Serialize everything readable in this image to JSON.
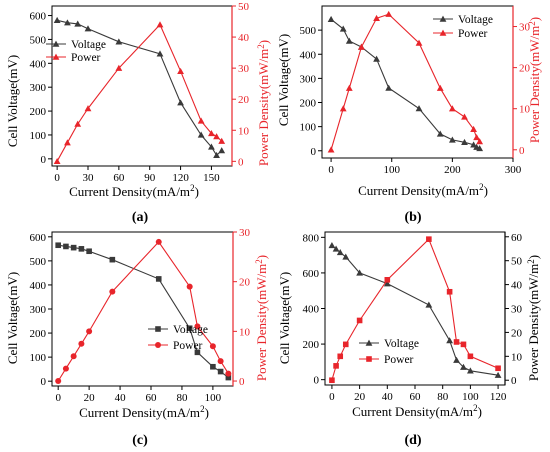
{
  "figure": {
    "panels": [
      {
        "label": "(a)",
        "xlabel": "Current Density(mA/m",
        "xlabel_sup": "2",
        "xlabel_end": ")",
        "ylabel_left": "Cell Voltage(mV)",
        "ylabel_right": "Power  Density(mW/m",
        "ylabel_right_sup": "2",
        "ylabel_right_end": ")",
        "legend_voltage": "Voltage",
        "legend_power": "Power"
      },
      {
        "label": "(b)",
        "xlabel": "Current Density(mA/m",
        "xlabel_sup": "2",
        "xlabel_end": ")",
        "ylabel_left": "Cell Voltage(mV)",
        "ylabel_right": "Power  Density(mW/m",
        "ylabel_right_sup": "2",
        "ylabel_right_end": ")",
        "legend_voltage": "Voltage",
        "legend_power": "Power"
      },
      {
        "label": "(c)",
        "xlabel": "Current Density(mA/m",
        "xlabel_sup": "2",
        "xlabel_end": ")",
        "ylabel_left": "Cell Voltage(mV)",
        "ylabel_right": "Power  Density(mW/m",
        "ylabel_right_sup": "2",
        "ylabel_right_end": ")",
        "legend_voltage": "Voltage",
        "legend_power": "Power"
      },
      {
        "label": "(d)",
        "xlabel": "Current Density(mA/m",
        "xlabel_sup": "2",
        "xlabel_end": ")",
        "ylabel_left": "Cell Voltage(mV)",
        "ylabel_right": "Power  Density(mW/m",
        "ylabel_right_sup": "2",
        "ylabel_right_end": ")",
        "legend_voltage": "Voltage",
        "legend_power": "Power"
      }
    ]
  },
  "colors": {
    "voltage": "#3a3a3a",
    "power": "#e8252b",
    "axis_left": "#000000",
    "axis_right": "#e8252b"
  },
  "chart_data": [
    {
      "type": "line",
      "panel": "(a)",
      "xlabel": "Current Density(mA/m2)",
      "ylabel_left": "Cell Voltage(mV)",
      "ylabel_right": "Power Density(mW/m2)",
      "xlim": [
        -5,
        170
      ],
      "xticks": [
        0,
        30,
        60,
        90,
        120,
        150
      ],
      "ylim_left": [
        -30,
        640
      ],
      "yticks_left": [
        0,
        100,
        200,
        300,
        400,
        500,
        600
      ],
      "ylim_right": [
        -1.5,
        50
      ],
      "yticks_right": [
        0,
        10,
        20,
        30,
        40,
        50
      ],
      "legend_position": "upper-left",
      "series": [
        {
          "name": "Voltage",
          "axis": "left",
          "marker": "triangle",
          "x": [
            0,
            10,
            20,
            30,
            60,
            100,
            120,
            140,
            150,
            155,
            160
          ],
          "y": [
            580,
            570,
            565,
            545,
            490,
            440,
            235,
            100,
            50,
            15,
            35
          ]
        },
        {
          "name": "Power",
          "axis": "right",
          "marker": "triangle",
          "x": [
            0,
            10,
            20,
            30,
            60,
            100,
            120,
            140,
            150,
            155,
            160
          ],
          "y": [
            0,
            6,
            12,
            17,
            30,
            44,
            29,
            13,
            9,
            8,
            6.5
          ]
        }
      ]
    },
    {
      "type": "line",
      "panel": "(b)",
      "xlabel": "Current Density(mA/m2)",
      "ylabel_left": "Cell Voltage(mV)",
      "ylabel_right": "Power Density(mW/m2)",
      "xlim": [
        -15,
        300
      ],
      "xticks": [
        0,
        100,
        200,
        300
      ],
      "ylim_left": [
        -30,
        600
      ],
      "yticks_left": [
        0,
        100,
        200,
        300,
        400,
        500
      ],
      "ylim_right": [
        -2,
        35
      ],
      "yticks_right": [
        0,
        10,
        20,
        30
      ],
      "legend_position": "upper-right",
      "series": [
        {
          "name": "Voltage",
          "axis": "left",
          "marker": "triangle",
          "x": [
            0,
            20,
            30,
            50,
            75,
            95,
            145,
            180,
            200,
            220,
            235,
            240,
            245
          ],
          "y": [
            545,
            505,
            455,
            430,
            380,
            260,
            175,
            70,
            45,
            35,
            25,
            15,
            10
          ]
        },
        {
          "name": "Power",
          "axis": "right",
          "marker": "triangle",
          "x": [
            0,
            20,
            30,
            50,
            75,
            95,
            145,
            180,
            200,
            220,
            235,
            240,
            245
          ],
          "y": [
            0,
            10,
            15,
            25,
            32,
            33,
            26,
            15,
            10,
            8,
            5,
            3,
            2
          ]
        }
      ]
    },
    {
      "type": "line",
      "panel": "(c)",
      "xlabel": "Current Density(mA/m2)",
      "ylabel_left": "Cell Voltage(mV)",
      "ylabel_right": "Power Density(mW/m2)",
      "xlim": [
        -4,
        113
      ],
      "xticks": [
        0,
        20,
        40,
        60,
        80,
        100
      ],
      "ylim_left": [
        -20,
        620
      ],
      "yticks_left": [
        0,
        100,
        200,
        300,
        400,
        500,
        600
      ],
      "ylim_right": [
        -1,
        30
      ],
      "yticks_right": [
        0,
        10,
        20,
        30
      ],
      "legend_position": "lower-right",
      "series": [
        {
          "name": "Voltage",
          "axis": "left",
          "marker": "square",
          "x": [
            0,
            5,
            10,
            15,
            20,
            35,
            65,
            85,
            90,
            100,
            105,
            110
          ],
          "y": [
            565,
            560,
            555,
            550,
            540,
            505,
            425,
            220,
            120,
            60,
            40,
            15
          ]
        },
        {
          "name": "Power",
          "axis": "right",
          "marker": "circle",
          "x": [
            0,
            5,
            10,
            15,
            20,
            35,
            65,
            85,
            90,
            100,
            105,
            110
          ],
          "y": [
            0,
            2.5,
            5,
            7.5,
            10,
            18,
            28,
            19,
            11,
            7,
            4,
            1.5
          ]
        }
      ]
    },
    {
      "type": "line",
      "panel": "(d)",
      "xlabel": "Current Density(mA/m2)",
      "ylabel_left": "Cell Voltage(mV)",
      "ylabel_right": "Power  Density(mW/m2)",
      "xlim": [
        -5,
        125
      ],
      "xticks": [
        0,
        20,
        40,
        60,
        80,
        100,
        120
      ],
      "ylim_left": [
        -30,
        830
      ],
      "yticks_left": [
        0,
        200,
        400,
        600,
        800
      ],
      "ylim_right": [
        -2,
        62
      ],
      "yticks_right": [
        0,
        10,
        20,
        30,
        40,
        50,
        60
      ],
      "legend_position": "lower-center",
      "series": [
        {
          "name": "Voltage",
          "axis": "left",
          "marker": "triangle",
          "x": [
            0,
            3,
            6,
            10,
            20,
            40,
            70,
            85,
            90,
            95,
            100,
            120
          ],
          "y": [
            755,
            735,
            715,
            690,
            600,
            540,
            420,
            220,
            110,
            70,
            50,
            25
          ]
        },
        {
          "name": "Power",
          "axis": "right",
          "marker": "square",
          "x": [
            0,
            3,
            6,
            10,
            20,
            40,
            70,
            85,
            90,
            95,
            100,
            120
          ],
          "y": [
            0,
            6,
            10,
            15,
            25,
            42,
            59,
            37,
            16,
            15,
            10,
            5
          ]
        }
      ]
    }
  ]
}
